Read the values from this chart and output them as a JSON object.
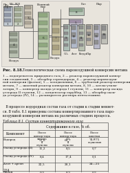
{
  "bg_color": "#f2efe9",
  "diagram_bg": "#e8e4dc",
  "diagram_border": "#aaaaaa",
  "fig_label": "Рис. 8.18.",
  "fig_caption_title": "Технологическая схема паровоздушной конверсии метана",
  "fig_caption_body": "1 — подогреватель природного газа, 2 — реактор паровоздушной конвер-сии соединений, 3 — абсорбер сероводорода, 4 — реактор паровоздуш-ной конверсии (фасная), 5 — холодильники, 6 — трубчатый реактор конверсии метана, 7 — шахтный реактор конверсии метана, 8, 10 — котлы-утили-заторы, 9 — конвертер оксида углерода I ступени, 11 — конвертер оксида углерода II ступени, 12 — конденсатор скруббер, 13 — абсорбер окси-да углерода (IV), 14 — разаморатель раствора пентаэтамина",
  "para_text": "В процессе водородная состав газа от стадии к стадии меняет-ся. В табл. 8.1 приведены составы конвертированного газа паро-воздушной конверсии метана на различных стадиях процесса.",
  "table_title": "Таблица 8.1. Состав конвертированного газа",
  "col_super": "Содержание в газе, % об.",
  "component_label": "Компонент",
  "col_header1": "После конвер-тора метана II ступени",
  "col_header2": "После конвер-тора CO II ступени",
  "col_header3": "После очистки и осушения",
  "row_labels": [
    "Водород",
    "Оксид углерода (II)",
    "Оксид углерода (IV)",
    "Азот + аргон",
    "Метан"
  ],
  "col1_vals": [
    "57,6",
    "11,2",
    "8,4",
    "22,5",
    "0,3"
  ],
  "col2_vals": [
    "60,7",
    "8,5",
    "17,4",
    "20,1",
    "8,3"
  ],
  "col3_vals": [
    "74—75",
    "0,7",
    "0,1",
    "24—25",
    "0,2"
  ],
  "page_num": "224",
  "label_пр_газ": "Пр.",
  "label_пр_газ2": "нефть",
  "label_h2": "H₂",
  "label_h2s": "H₂S",
  "label_водяной_пар": "Водяной",
  "label_водяной_пар2": "пар",
  "label_газ_top": "Газ",
  "label_пар_top": "Пар",
  "label_воздух": "Воздух",
  "label_воздух2": "Воздух",
  "label_co2": "CO₂",
  "label_азот": "Азот",
  "label_воздух3": "Воздух",
  "label_пар_bot": "Пар"
}
